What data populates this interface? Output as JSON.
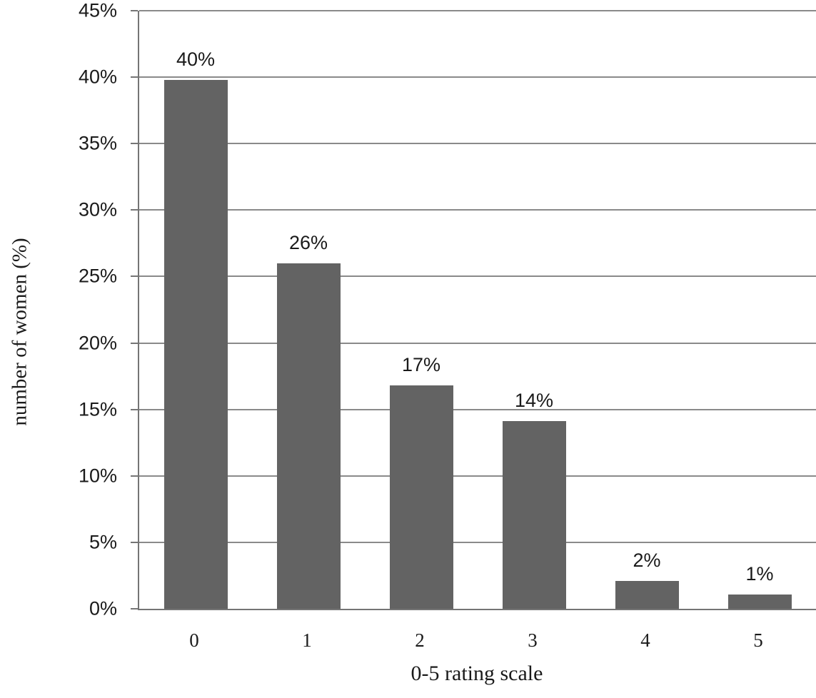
{
  "chart_data": {
    "type": "bar",
    "title": "",
    "xlabel": "0-5 rating scale",
    "ylabel": "number of women (%)",
    "categories": [
      "0",
      "1",
      "2",
      "3",
      "4",
      "5"
    ],
    "values": [
      40,
      26,
      17,
      14,
      2,
      1
    ],
    "data_labels": [
      "40%",
      "26%",
      "17%",
      "14%",
      "2%",
      "1%"
    ],
    "bar_heights_pct": [
      39.8,
      26.0,
      16.8,
      14.1,
      2.1,
      1.1
    ],
    "ylim": [
      0,
      45
    ],
    "ytick_step": 5,
    "ytick_labels": [
      "0%",
      "5%",
      "10%",
      "15%",
      "20%",
      "25%",
      "30%",
      "35%",
      "40%",
      "45%"
    ],
    "grid": "horizontal",
    "legend": "none",
    "colors": {
      "bar": "#636363",
      "gridline": "#8a8a8a",
      "axis": "#757575",
      "text": "#1a1a1a",
      "background": "#ffffff"
    }
  }
}
